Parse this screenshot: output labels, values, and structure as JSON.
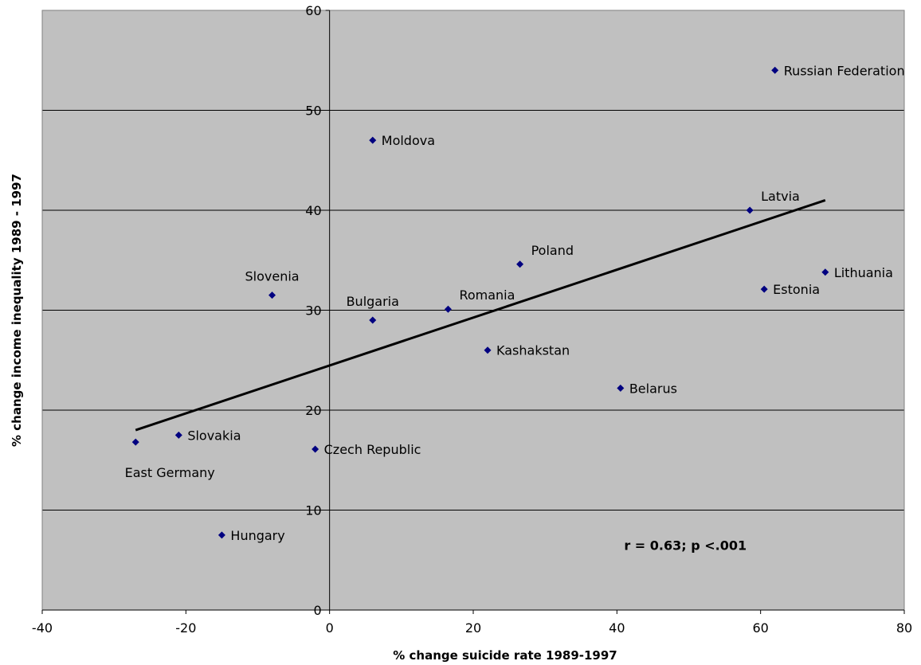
{
  "chart_data": {
    "type": "scatter",
    "xlabel": "% change suicide rate 1989-1997",
    "ylabel": "% change income inequality 1989 - 1997",
    "xlim": [
      -40,
      80
    ],
    "ylim": [
      0,
      60
    ],
    "x_ticks": [
      -40,
      -20,
      0,
      20,
      40,
      60,
      80
    ],
    "y_ticks": [
      0,
      10,
      20,
      30,
      40,
      50,
      60
    ],
    "x_tick_labels": [
      "-40",
      "-20",
      "0",
      "20",
      "40",
      "60",
      "80"
    ],
    "y_tick_labels": [
      "0",
      "10",
      "20",
      "30",
      "40",
      "50",
      "60"
    ],
    "grid": "horizontal",
    "plot_background": "#c0c0c0",
    "marker_color": "#000080",
    "points": [
      {
        "label": "Russian Federation",
        "x": 62,
        "y": 54,
        "label_pos": "right"
      },
      {
        "label": "Moldova",
        "x": 6,
        "y": 47,
        "label_pos": "right"
      },
      {
        "label": "Latvia",
        "x": 58.5,
        "y": 40,
        "label_pos": "above-right"
      },
      {
        "label": "Poland",
        "x": 26.5,
        "y": 34.6,
        "label_pos": "above-right"
      },
      {
        "label": "Lithuania",
        "x": 69,
        "y": 33.8,
        "label_pos": "right"
      },
      {
        "label": "Estonia",
        "x": 60.5,
        "y": 32.1,
        "label_pos": "right"
      },
      {
        "label": "Slovenia",
        "x": -8,
        "y": 31.5,
        "label_pos": "above-left"
      },
      {
        "label": "Romania",
        "x": 16.5,
        "y": 30.1,
        "label_pos": "above-right"
      },
      {
        "label": "Bulgaria",
        "x": 6,
        "y": 29,
        "label_pos": "above-left"
      },
      {
        "label": "Kashakstan",
        "x": 22,
        "y": 26,
        "label_pos": "right"
      },
      {
        "label": "Belarus",
        "x": 40.5,
        "y": 22.2,
        "label_pos": "right"
      },
      {
        "label": "Slovakia",
        "x": -21,
        "y": 17.5,
        "label_pos": "right"
      },
      {
        "label": "East Germany",
        "x": -27,
        "y": 16.8,
        "label_pos": "below"
      },
      {
        "label": "Czech Republic",
        "x": -2,
        "y": 16.1,
        "label_pos": "right"
      },
      {
        "label": "Hungary",
        "x": -15,
        "y": 7.5,
        "label_pos": "right"
      }
    ],
    "trendline": {
      "x": [
        -27,
        69
      ],
      "y": [
        18,
        41
      ]
    },
    "annotation": "r = 0.63; p <.001",
    "annotation_position": {
      "x": 41,
      "y": 6
    }
  }
}
